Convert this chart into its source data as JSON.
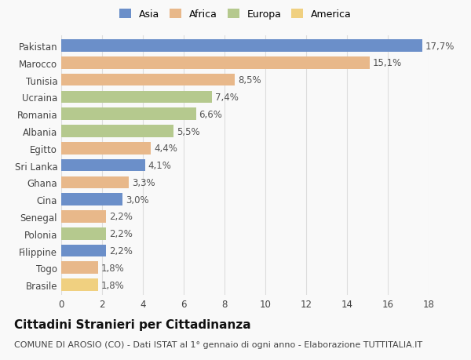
{
  "categories": [
    "Pakistan",
    "Marocco",
    "Tunisia",
    "Ucraina",
    "Romania",
    "Albania",
    "Egitto",
    "Sri Lanka",
    "Ghana",
    "Cina",
    "Senegal",
    "Polonia",
    "Filippine",
    "Togo",
    "Brasile"
  ],
  "values": [
    17.7,
    15.1,
    8.5,
    7.4,
    6.6,
    5.5,
    4.4,
    4.1,
    3.3,
    3.0,
    2.2,
    2.2,
    2.2,
    1.8,
    1.8
  ],
  "labels": [
    "17,7%",
    "15,1%",
    "8,5%",
    "7,4%",
    "6,6%",
    "5,5%",
    "4,4%",
    "4,1%",
    "3,3%",
    "3,0%",
    "2,2%",
    "2,2%",
    "2,2%",
    "1,8%",
    "1,8%"
  ],
  "colors": [
    "#6b8fc9",
    "#e8b88a",
    "#e8b88a",
    "#b5c98e",
    "#b5c98e",
    "#b5c98e",
    "#e8b88a",
    "#6b8fc9",
    "#e8b88a",
    "#6b8fc9",
    "#e8b88a",
    "#b5c98e",
    "#6b8fc9",
    "#e8b88a",
    "#f0d080"
  ],
  "legend_labels": [
    "Asia",
    "Africa",
    "Europa",
    "America"
  ],
  "legend_colors": [
    "#6b8fc9",
    "#e8b88a",
    "#b5c98e",
    "#f0d080"
  ],
  "title": "Cittadini Stranieri per Cittadinanza",
  "subtitle": "COMUNE DI AROSIO (CO) - Dati ISTAT al 1° gennaio di ogni anno - Elaborazione TUTTITALIA.IT",
  "xlim": [
    0,
    18
  ],
  "xticks": [
    0,
    2,
    4,
    6,
    8,
    10,
    12,
    14,
    16,
    18
  ],
  "background_color": "#f9f9f9",
  "grid_color": "#dddddd",
  "bar_height": 0.72,
  "label_fontsize": 8.5,
  "title_fontsize": 11,
  "subtitle_fontsize": 8,
  "tick_fontsize": 8.5,
  "legend_fontsize": 9
}
